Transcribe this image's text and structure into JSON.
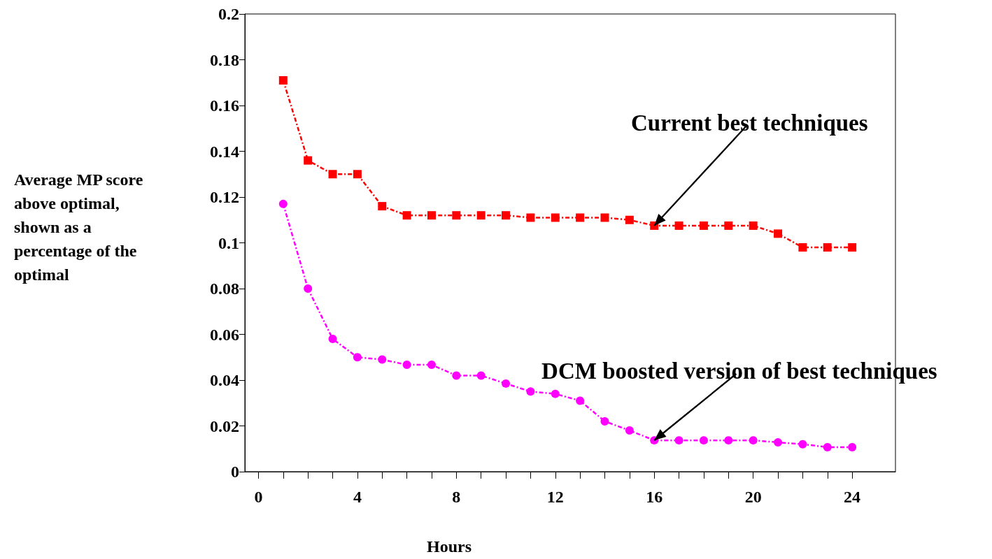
{
  "chart_data": {
    "type": "line",
    "xlabel": "Hours",
    "ylabel": "Average MP score above optimal, shown as a percentage of the optimal",
    "x": [
      1,
      2,
      3,
      4,
      5,
      6,
      7,
      8,
      9,
      10,
      11,
      12,
      13,
      14,
      15,
      16,
      17,
      18,
      19,
      20,
      21,
      22,
      23,
      24
    ],
    "series": [
      {
        "color": "#ff0000",
        "marker": "square",
        "values": [
          0.171,
          0.136,
          0.13,
          0.13,
          0.116,
          0.112,
          0.112,
          0.112,
          0.112,
          0.112,
          0.111,
          0.111,
          0.111,
          0.111,
          0.11,
          0.1075,
          0.1075,
          0.1075,
          0.1075,
          0.1075,
          0.104,
          0.098,
          0.098,
          0.098
        ]
      },
      {
        "color": "#ff00ff",
        "marker": "circle",
        "values": [
          0.117,
          0.08,
          0.058,
          0.05,
          0.049,
          0.0467,
          0.0467,
          0.042,
          0.042,
          0.0385,
          0.035,
          0.034,
          0.031,
          0.022,
          0.018,
          0.0137,
          0.0137,
          0.0137,
          0.0137,
          0.0137,
          0.0128,
          0.012,
          0.0107,
          0.0107
        ]
      }
    ],
    "line_style": "dashed",
    "xlim": [
      -0.55,
      25.75
    ],
    "xticks": [
      0,
      {
        "value": 1,
        "label": null
      },
      {
        "value": 2,
        "label": null
      },
      {
        "value": 3,
        "label": null
      },
      4,
      {
        "value": 5,
        "label": null
      },
      {
        "value": 6,
        "label": null
      },
      {
        "value": 7,
        "label": null
      },
      8,
      {
        "value": 9,
        "label": null
      },
      {
        "value": 10,
        "label": null
      },
      {
        "value": 11,
        "label": null
      },
      12,
      {
        "value": 13,
        "label": null
      },
      {
        "value": 14,
        "label": null
      },
      {
        "value": 15,
        "label": null
      },
      16,
      {
        "value": 17,
        "label": null
      },
      {
        "value": 18,
        "label": null
      },
      {
        "value": 19,
        "label": null
      },
      20,
      {
        "value": 21,
        "label": null
      },
      {
        "value": 22,
        "label": null
      },
      {
        "value": 23,
        "label": null
      },
      24
    ],
    "ylim": [
      0,
      0.2
    ],
    "yticks": [
      0,
      0.02,
      0.04,
      0.06,
      0.08,
      0.1,
      0.12,
      0.14,
      0.16,
      0.18,
      0.2
    ],
    "grid": false,
    "annotations": [
      {
        "text": "Current best techniques",
        "x": 16,
        "y": 0.1075
      },
      {
        "text": "DCM boosted version of best techniques",
        "x": 16,
        "y": 0.0137
      }
    ]
  }
}
